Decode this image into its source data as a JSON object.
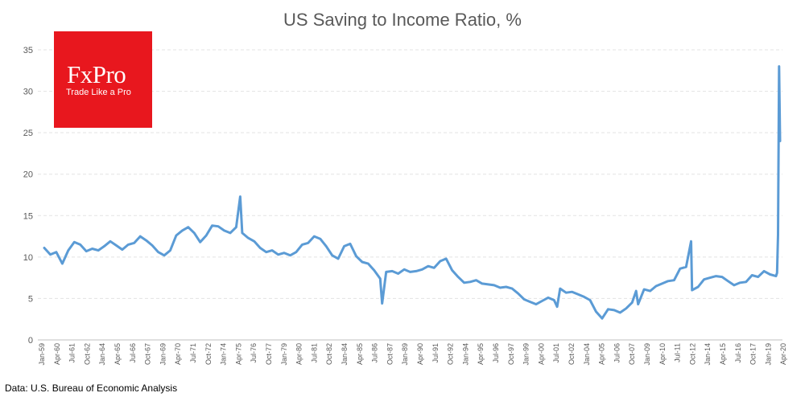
{
  "title": "US Saving to Income Ratio, %",
  "logo": {
    "name": "FxPro",
    "tagline": "Trade Like a Pro",
    "color": "#e8171e"
  },
  "source": "Data: U.S. Bureau of Economic Analysis",
  "chart_data": {
    "type": "line",
    "title": "US Saving to Income Ratio, %",
    "xlabel": "",
    "ylabel": "",
    "ylim": [
      0,
      35
    ],
    "yticks": [
      0,
      5,
      10,
      15,
      20,
      25,
      30,
      35
    ],
    "grid": "horizontal dashed",
    "line_color": "#5b9bd5",
    "x_tick_labels": [
      "Jan-59",
      "Apr-60",
      "Jul-61",
      "Oct-62",
      "Jan-64",
      "Apr-65",
      "Jul-66",
      "Oct-67",
      "Jan-69",
      "Apr-70",
      "Jul-71",
      "Oct-72",
      "Jan-74",
      "Apr-75",
      "Jul-76",
      "Oct-77",
      "Jan-79",
      "Apr-80",
      "Jul-81",
      "Oct-82",
      "Jan-84",
      "Apr-85",
      "Jul-86",
      "Oct-87",
      "Jan-89",
      "Apr-90",
      "Jul-91",
      "Oct-92",
      "Jan-94",
      "Apr-95",
      "Jul-96",
      "Oct-97",
      "Jan-99",
      "Apr-00",
      "Jul-01",
      "Oct-02",
      "Jan-04",
      "Apr-05",
      "Jul-06",
      "Oct-07",
      "Jan-09",
      "Apr-10",
      "Jul-11",
      "Oct-12",
      "Jan-14",
      "Apr-15",
      "Jul-16",
      "Oct-17",
      "Jan-19",
      "Apr-20"
    ],
    "series": [
      {
        "x": [
          "1959-01",
          "1959-07",
          "1960-01",
          "1960-07",
          "1961-01",
          "1961-07",
          "1962-01",
          "1962-07",
          "1963-01",
          "1963-07",
          "1964-01",
          "1964-07",
          "1965-01",
          "1965-07",
          "1966-01",
          "1966-07",
          "1967-01",
          "1967-07",
          "1968-01",
          "1968-07",
          "1969-01",
          "1969-07",
          "1970-01",
          "1970-07",
          "1971-01",
          "1971-07",
          "1972-01",
          "1972-07",
          "1973-01",
          "1973-07",
          "1974-01",
          "1974-07",
          "1975-01",
          "1975-05",
          "1975-07",
          "1976-01",
          "1976-07",
          "1977-01",
          "1977-07",
          "1978-01",
          "1978-07",
          "1979-01",
          "1979-07",
          "1980-01",
          "1980-07",
          "1981-01",
          "1981-07",
          "1982-01",
          "1982-07",
          "1983-01",
          "1983-07",
          "1984-01",
          "1984-07",
          "1985-01",
          "1985-07",
          "1986-01",
          "1986-07",
          "1987-01",
          "1987-03",
          "1987-07",
          "1988-01",
          "1988-07",
          "1989-01",
          "1989-07",
          "1990-01",
          "1990-07",
          "1991-01",
          "1991-07",
          "1992-01",
          "1992-07",
          "1993-01",
          "1993-07",
          "1994-01",
          "1994-07",
          "1995-01",
          "1995-07",
          "1996-01",
          "1996-07",
          "1997-01",
          "1997-07",
          "1998-01",
          "1998-07",
          "1999-01",
          "1999-07",
          "2000-01",
          "2000-07",
          "2001-01",
          "2001-07",
          "2001-10",
          "2002-01",
          "2002-07",
          "2003-01",
          "2003-07",
          "2004-01",
          "2004-07",
          "2005-01",
          "2005-07",
          "2006-01",
          "2006-07",
          "2007-01",
          "2007-07",
          "2008-01",
          "2008-05",
          "2008-07",
          "2009-01",
          "2009-07",
          "2010-01",
          "2010-07",
          "2011-01",
          "2011-07",
          "2012-01",
          "2012-07",
          "2012-12",
          "2013-01",
          "2013-07",
          "2014-01",
          "2014-07",
          "2015-01",
          "2015-07",
          "2016-01",
          "2016-07",
          "2017-01",
          "2017-07",
          "2018-01",
          "2018-07",
          "2019-01",
          "2019-07",
          "2020-01",
          "2020-02",
          "2020-03",
          "2020-04",
          "2020-05"
        ],
        "values": [
          11.1,
          10.3,
          10.6,
          9.2,
          10.8,
          11.8,
          11.5,
          10.7,
          11.0,
          10.8,
          11.3,
          11.9,
          11.4,
          10.9,
          11.5,
          11.7,
          12.5,
          12.0,
          11.4,
          10.6,
          10.2,
          10.8,
          12.6,
          13.2,
          13.6,
          12.9,
          11.8,
          12.6,
          13.8,
          13.7,
          13.2,
          12.9,
          13.6,
          17.3,
          12.9,
          12.3,
          11.9,
          11.1,
          10.6,
          10.8,
          10.3,
          10.5,
          10.2,
          10.6,
          11.5,
          11.7,
          12.5,
          12.2,
          11.3,
          10.2,
          9.8,
          11.3,
          11.6,
          10.1,
          9.4,
          9.2,
          8.4,
          7.4,
          4.4,
          8.2,
          8.3,
          8.0,
          8.5,
          8.2,
          8.3,
          8.5,
          8.9,
          8.7,
          9.5,
          9.8,
          8.4,
          7.6,
          6.9,
          7.0,
          7.2,
          6.8,
          6.7,
          6.6,
          6.3,
          6.4,
          6.2,
          5.6,
          4.9,
          4.6,
          4.3,
          4.7,
          5.1,
          4.8,
          4.0,
          6.2,
          5.7,
          5.8,
          5.5,
          5.2,
          4.8,
          3.4,
          2.6,
          3.7,
          3.6,
          3.3,
          3.8,
          4.5,
          5.9,
          4.3,
          6.1,
          5.9,
          6.5,
          6.8,
          7.1,
          7.2,
          8.6,
          8.8,
          11.9,
          6.0,
          6.4,
          7.3,
          7.5,
          7.7,
          7.6,
          7.1,
          6.6,
          6.9,
          7.0,
          7.8,
          7.6,
          8.3,
          7.9,
          7.7,
          8.1,
          12.7,
          33.0,
          24.0
        ]
      }
    ]
  }
}
